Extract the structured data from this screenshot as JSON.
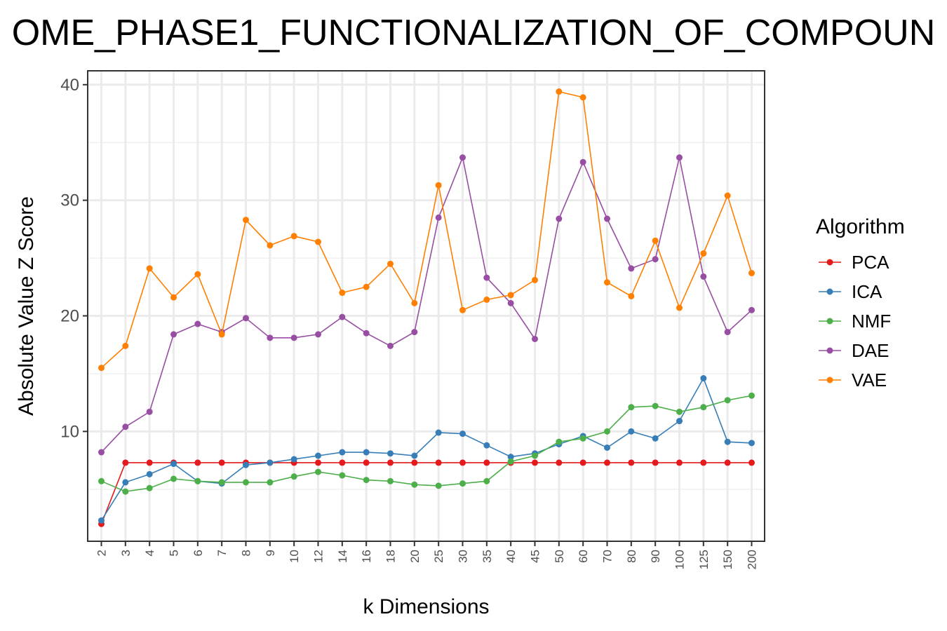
{
  "chart_data": {
    "type": "line",
    "title": "OME_PHASE1_FUNCTIONALIZATION_OF_COMPOUN",
    "xlabel": "k Dimensions",
    "ylabel": "Absolute Value Z Score",
    "categories": [
      "2",
      "3",
      "4",
      "5",
      "6",
      "7",
      "8",
      "9",
      "10",
      "12",
      "14",
      "16",
      "18",
      "20",
      "25",
      "30",
      "35",
      "40",
      "45",
      "50",
      "60",
      "70",
      "80",
      "90",
      "100",
      "125",
      "150",
      "200"
    ],
    "ylim": [
      0.5,
      41.2
    ],
    "yticks": [
      10,
      20,
      30,
      40
    ],
    "grid": true,
    "legend": {
      "title": "Algorithm",
      "position": "right"
    },
    "series": [
      {
        "name": "PCA",
        "color": "#e41a1c",
        "values": [
          2.0,
          7.3,
          7.3,
          7.3,
          7.3,
          7.3,
          7.3,
          7.3,
          7.3,
          7.3,
          7.3,
          7.3,
          7.3,
          7.3,
          7.3,
          7.3,
          7.3,
          7.3,
          7.3,
          7.3,
          7.3,
          7.3,
          7.3,
          7.3,
          7.3,
          7.3,
          7.3,
          7.3
        ]
      },
      {
        "name": "ICA",
        "color": "#377eb8",
        "values": [
          2.3,
          5.6,
          6.3,
          7.2,
          5.7,
          5.5,
          7.1,
          7.3,
          7.6,
          7.9,
          8.2,
          8.2,
          8.1,
          7.9,
          9.9,
          9.8,
          8.8,
          7.8,
          8.1,
          8.9,
          9.6,
          8.6,
          10.0,
          9.4,
          10.9,
          14.6,
          9.1,
          9.0
        ]
      },
      {
        "name": "NMF",
        "color": "#4daf4a",
        "values": [
          5.7,
          4.8,
          5.1,
          5.9,
          5.7,
          5.6,
          5.6,
          5.6,
          6.1,
          6.5,
          6.2,
          5.8,
          5.7,
          5.4,
          5.3,
          5.5,
          5.7,
          7.4,
          7.9,
          9.1,
          9.4,
          10.0,
          12.1,
          12.2,
          11.7,
          12.1,
          12.7,
          13.1
        ]
      },
      {
        "name": "DAE",
        "color": "#984ea3",
        "values": [
          8.2,
          10.4,
          11.7,
          18.4,
          19.3,
          18.6,
          19.8,
          18.1,
          18.1,
          18.4,
          19.9,
          18.5,
          17.4,
          18.6,
          28.5,
          33.7,
          23.3,
          21.1,
          18.0,
          28.4,
          33.3,
          28.4,
          24.1,
          24.9,
          33.7,
          23.4,
          18.6,
          20.5
        ]
      },
      {
        "name": "VAE",
        "color": "#ff7f00",
        "values": [
          15.5,
          17.4,
          24.1,
          21.6,
          23.6,
          18.4,
          28.3,
          26.1,
          26.9,
          26.4,
          22.0,
          22.5,
          24.5,
          21.1,
          31.3,
          20.5,
          21.4,
          21.8,
          23.1,
          39.4,
          38.9,
          22.9,
          21.7,
          26.5,
          20.7,
          25.4,
          30.4,
          23.7
        ]
      }
    ]
  }
}
